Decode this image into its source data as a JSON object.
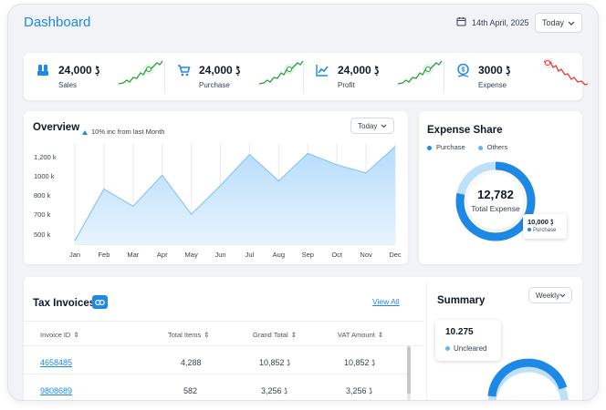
{
  "header": {
    "title": "Dashboard",
    "date": "14th April, 2025",
    "period": "Today"
  },
  "kpis": [
    {
      "name": "sales",
      "value": "24,000",
      "label": "Sales",
      "trend": "up"
    },
    {
      "name": "purchase",
      "value": "24,000",
      "label": "Purchase",
      "trend": "up"
    },
    {
      "name": "profit",
      "value": "24,000",
      "label": "Profit",
      "trend": "up"
    },
    {
      "name": "expense",
      "value": "3000",
      "label": "Expense",
      "trend": "down"
    }
  ],
  "currency_symbol": "ڋ",
  "overview": {
    "title": "Overview",
    "change": "10% inc from last Month",
    "period": "Today"
  },
  "chart_data": {
    "type": "area",
    "title": "Overview",
    "categories": [
      "Jan",
      "Feb",
      "Mar",
      "Apr",
      "May",
      "Jun",
      "Jul",
      "Aug",
      "Sep",
      "Oct",
      "Nov",
      "Dec"
    ],
    "y_tick_labels": [
      "1,200 k",
      "1000 k",
      "800 k",
      "700 k",
      "500 k"
    ],
    "values": [
      410,
      860,
      710,
      980,
      640,
      890,
      1160,
      930,
      1170,
      1070,
      1000,
      1230
    ],
    "ylim": [
      380,
      1260
    ],
    "grid": "vertical"
  },
  "expense_share": {
    "title": "Expense Share",
    "legend": [
      {
        "label": "Purchase",
        "color": "#1e88e5"
      },
      {
        "label": "Others",
        "color": "#64b5f6"
      }
    ],
    "total_value": "12,782",
    "total_label": "Total Expense",
    "tooltip_value": "10,000",
    "tooltip_label": "Purchase",
    "purchase_value": 10000,
    "total_amount": 12782
  },
  "tax_invoices": {
    "title": "Tax Invoices",
    "view_all": "View All",
    "columns": [
      "Invoice ID",
      "Total Items",
      "Grand Total",
      "VAT Amount"
    ],
    "rows": [
      {
        "invoice_id": "4658485",
        "total_items": "4,288",
        "grand_total": "10,852",
        "vat_amount": "10,852"
      },
      {
        "invoice_id": "9808689",
        "total_items": "582",
        "grand_total": "3,256",
        "vat_amount": "3,256"
      }
    ]
  },
  "summary": {
    "title": "Summary",
    "period": "Weekly",
    "value": "10.275",
    "label": "Uncleared"
  },
  "colors": {
    "accent": "#1e88e5",
    "light_accent": "#64b5f6",
    "up": "#22a33a",
    "down": "#e53935"
  }
}
